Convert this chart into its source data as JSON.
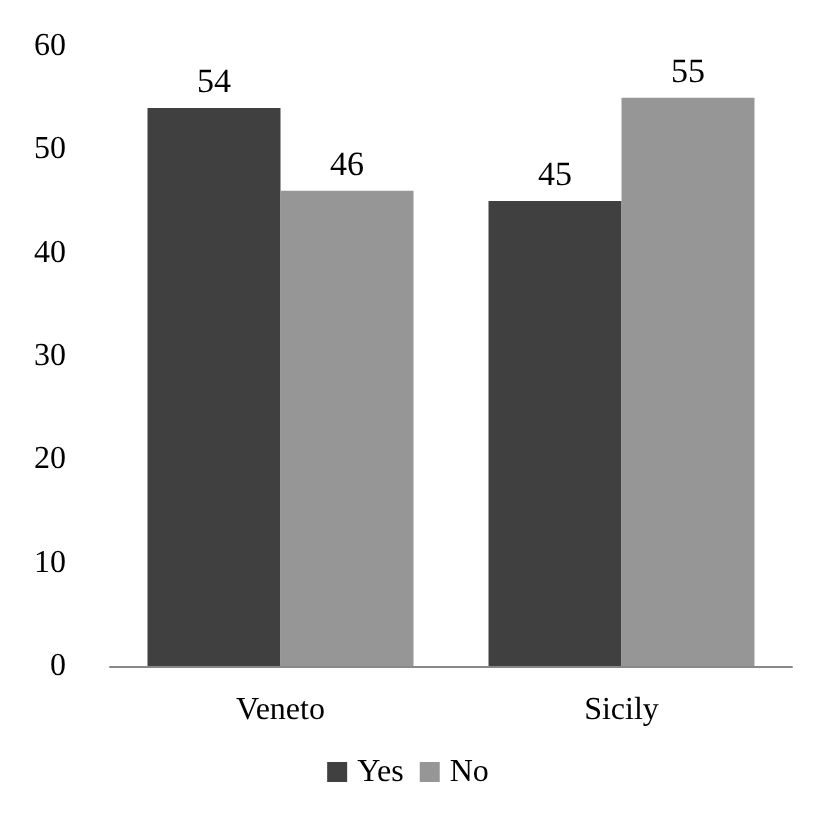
{
  "chart_data": {
    "type": "bar",
    "categories": [
      "Veneto",
      "Sicily"
    ],
    "series": [
      {
        "name": "Yes",
        "color": "#404040",
        "values": [
          54,
          45
        ]
      },
      {
        "name": "No",
        "color": "#969696",
        "values": [
          46,
          55
        ]
      }
    ],
    "ylim": [
      0,
      60
    ],
    "yticks": [
      0,
      10,
      20,
      30,
      40,
      50,
      60
    ],
    "grid": false,
    "legend": "bottom",
    "data_labels": true
  }
}
